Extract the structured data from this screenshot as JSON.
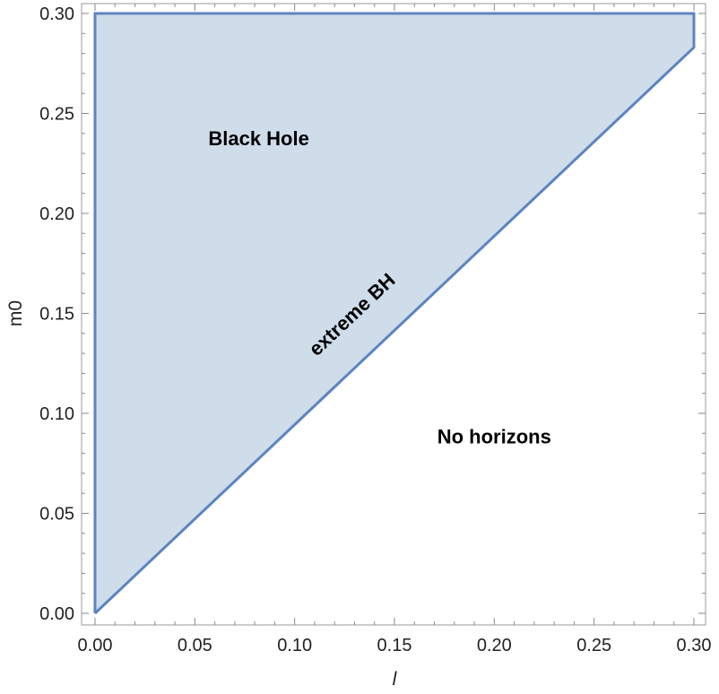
{
  "chart_data": {
    "type": "area",
    "title": "",
    "xlabel": "l",
    "ylabel": "m0",
    "xlim": [
      0.0,
      0.3
    ],
    "ylim": [
      0.0,
      0.3
    ],
    "x_ticks": [
      "0.00",
      "0.05",
      "0.10",
      "0.15",
      "0.20",
      "0.25",
      "0.30"
    ],
    "y_ticks": [
      "0.00",
      "0.05",
      "0.10",
      "0.15",
      "0.20",
      "0.25",
      "0.30"
    ],
    "grid": false,
    "fill_color": "#cfdcea",
    "line_color": "#5d84be",
    "region_boundary": {
      "x": [
        0.0,
        0.0,
        0.3,
        0.3,
        0.0
      ],
      "y": [
        0.0,
        0.3,
        0.3,
        0.283,
        0.0
      ]
    },
    "annotations": [
      {
        "text": "Black Hole",
        "x": 0.082,
        "y": 0.234
      },
      {
        "text": "No horizons",
        "x": 0.2,
        "y": 0.085
      },
      {
        "text": "extreme BH",
        "x": 0.131,
        "y": 0.147,
        "rotate_along_boundary": true
      }
    ]
  }
}
